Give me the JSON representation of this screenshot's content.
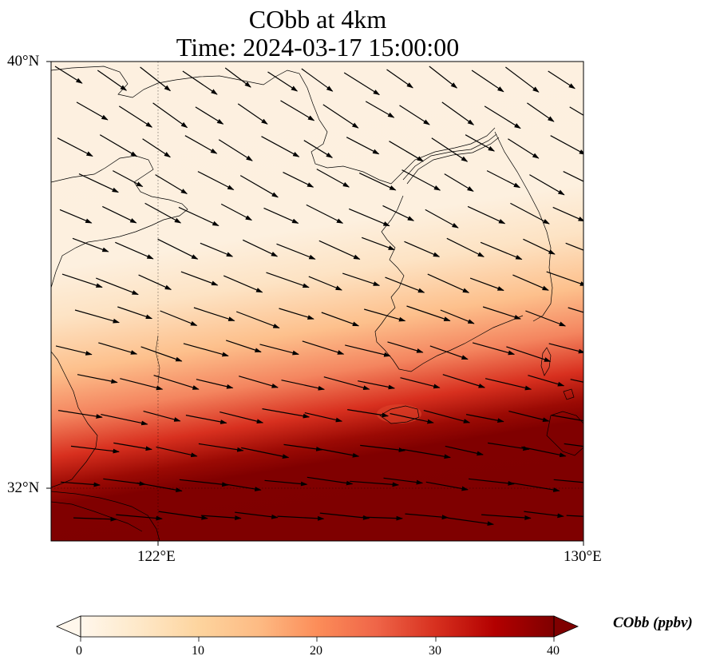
{
  "title": "CObb at 4km",
  "subtitle": "Time: 2024-03-17 15:00:00",
  "map": {
    "lat_labels": [
      "40°N",
      "32°N"
    ],
    "lon_labels": [
      "122°E",
      "130°E"
    ],
    "extent": {
      "lon_min": 120,
      "lon_max": 130,
      "lat_min": 31,
      "lat_max": 40
    },
    "gridlines": "dotted",
    "vector_field": "wind arrows pointing east-southeast",
    "colormap": "OrRd"
  },
  "colorbar": {
    "label": "CObb (ppbv)",
    "ticks": [
      "0",
      "10",
      "20",
      "30",
      "40"
    ],
    "min": 0,
    "max": 40,
    "extend": "both",
    "colors": [
      "#fff7ec",
      "#fee8c8",
      "#fdd49e",
      "#fdbb84",
      "#fc8d59",
      "#ef6548",
      "#d7301f",
      "#b30000",
      "#7f0000"
    ]
  }
}
